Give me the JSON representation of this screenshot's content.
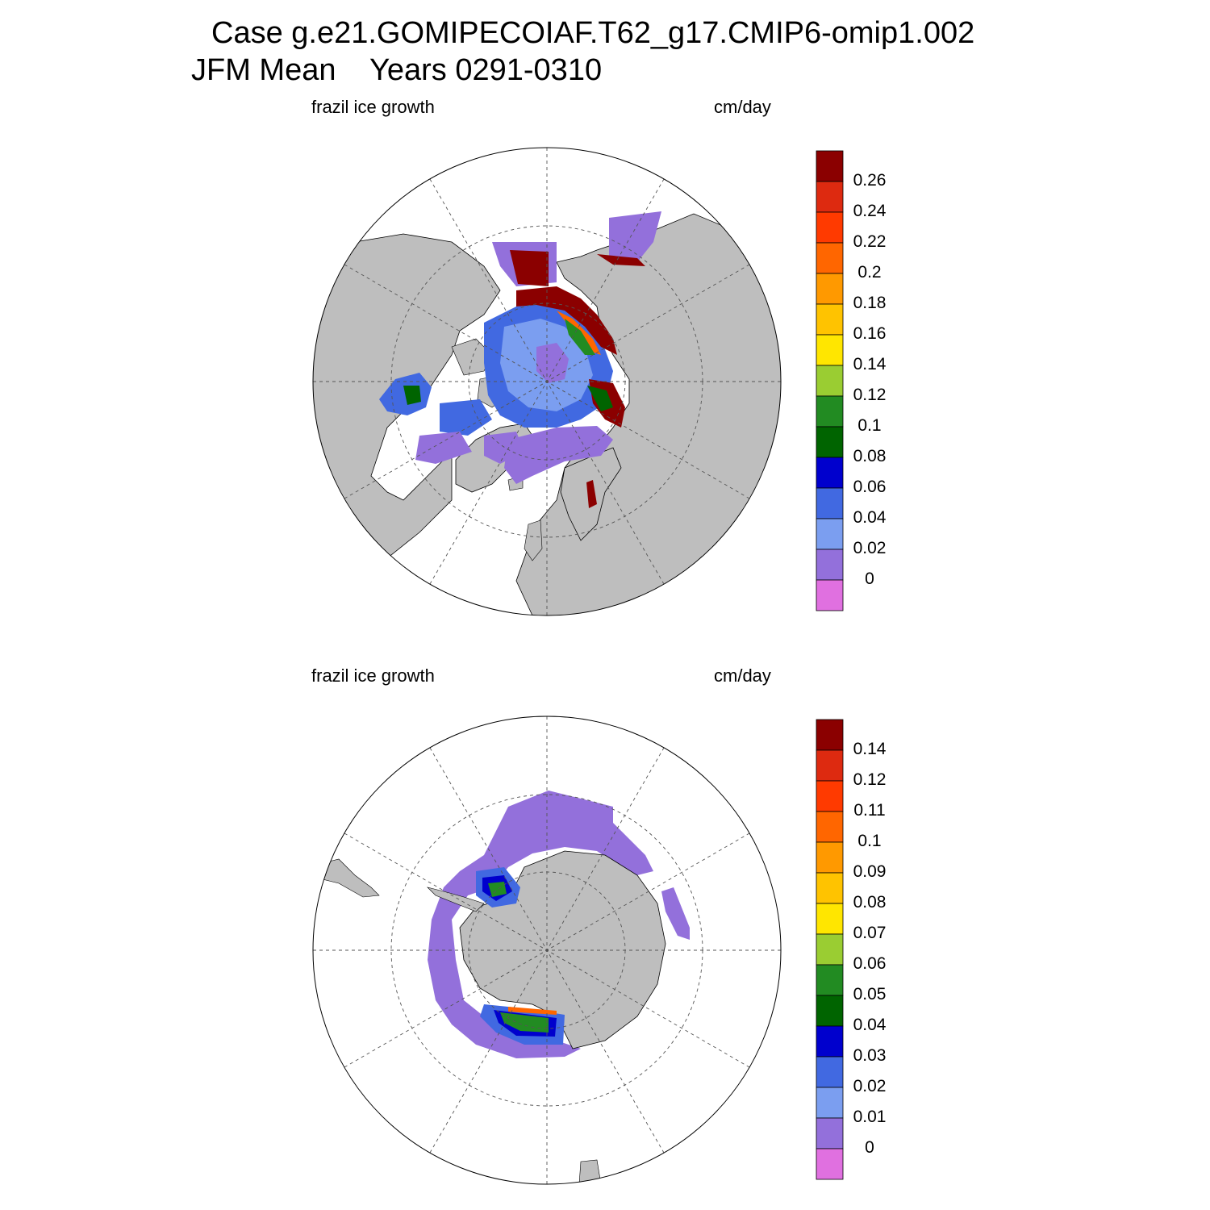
{
  "header": {
    "title_line1": "Case g.e21.GOMIPECOIAF.T62_g17.CMIP6-omip1.002",
    "title_line2": "JFM Mean    Years 0291-0310"
  },
  "panels": [
    {
      "name": "north",
      "left_label": "frazil ice growth",
      "right_label": "cm/day",
      "colorbar": {
        "labels": [
          "0.26",
          "0.24",
          "0.22",
          "0.2",
          "0.18",
          "0.16",
          "0.14",
          "0.12",
          "0.1",
          "0.08",
          "0.06",
          "0.04",
          "0.02",
          "0"
        ]
      }
    },
    {
      "name": "south",
      "left_label": "frazil ice growth",
      "right_label": "cm/day",
      "colorbar": {
        "labels": [
          "0.14",
          "0.12",
          "0.11",
          "0.1",
          "0.09",
          "0.08",
          "0.07",
          "0.06",
          "0.05",
          "0.04",
          "0.03",
          "0.02",
          "0.01",
          "0"
        ]
      }
    }
  ],
  "colorbar_colors": [
    "#8b0000",
    "#dd2a10",
    "#ff3a00",
    "#ff6600",
    "#ff9900",
    "#ffc300",
    "#ffe600",
    "#9acd32",
    "#228b22",
    "#006400",
    "#0000cd",
    "#4169e1",
    "#7b9ef0",
    "#9370db",
    "#e070e0"
  ],
  "land_color": "#bebebe"
}
